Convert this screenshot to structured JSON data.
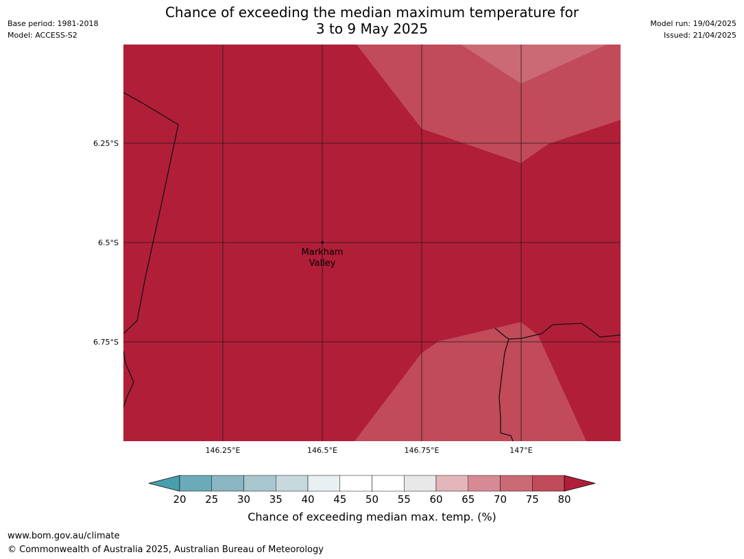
{
  "header": {
    "base_period": "Base period: 1981-2018",
    "model": "Model: ACCESS-S2",
    "model_run": "Model run: 19/04/2025",
    "issued": "Issued: 21/04/2025",
    "title_line1": "Chance of exceeding the median maximum temperature for",
    "title_line2": "3 to 9 May 2025"
  },
  "map": {
    "place_label_line1": "Markham",
    "place_label_line2": "Valley",
    "lat_labels": [
      "6.25°S",
      "6.5°S",
      "6.75°S"
    ],
    "lon_labels": [
      "146.25°E",
      "146.5°E",
      "146.75°E",
      "147°E"
    ],
    "colors": {
      "c75_80": "#b11e38",
      "c70_75": "#c14b59",
      "c65_70": "#cb6a75"
    }
  },
  "colorbar": {
    "label": "Chance of exceeding median max. temp. (%)",
    "ticks": [
      "20",
      "25",
      "30",
      "35",
      "40",
      "45",
      "50",
      "55",
      "60",
      "65",
      "70",
      "75",
      "80"
    ],
    "colors": [
      "#4a9fae",
      "#6aaab9",
      "#8ab5c3",
      "#a8c6cd",
      "#c7d9dc",
      "#e8f0f1",
      "#ffffff",
      "#ffffff",
      "#e8e8e8",
      "#e3b6bb",
      "#d78a94",
      "#cb6a75",
      "#c14b59",
      "#b11e38"
    ]
  },
  "footer": {
    "url": "www.bom.gov.au/climate",
    "copyright": "© Commonwealth of Australia 2025, Australian Bureau of Meteorology"
  }
}
